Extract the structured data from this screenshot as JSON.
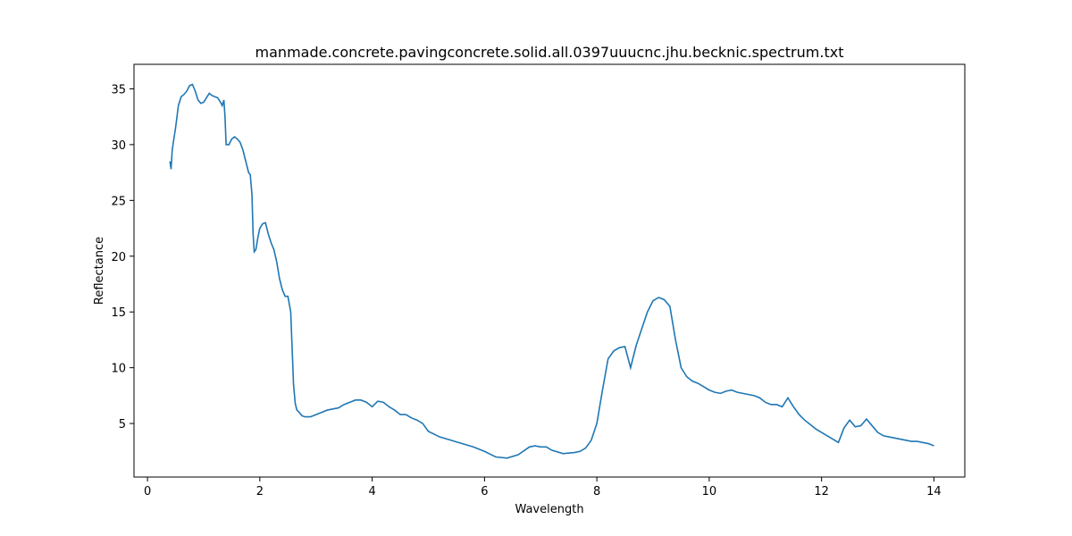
{
  "chart_data": {
    "type": "line",
    "title": "manmade.concrete.pavingconcrete.solid.all.0397uuucnc.jhu.becknic.spectrum.txt",
    "xlabel": "Wavelength",
    "ylabel": "Reflectance",
    "xlim": [
      -0.24,
      14.55
    ],
    "ylim": [
      0.2,
      37.2
    ],
    "xticks": [
      0,
      2,
      4,
      6,
      8,
      10,
      12,
      14
    ],
    "yticks": [
      5,
      10,
      15,
      20,
      25,
      30,
      35
    ],
    "grid": false,
    "line_color": "#1f77b4",
    "series": [
      {
        "x": [
          0.4,
          0.42,
          0.44,
          0.46,
          0.5,
          0.55,
          0.6,
          0.65,
          0.7,
          0.75,
          0.8,
          0.85,
          0.9,
          0.95,
          1.0,
          1.05,
          1.1,
          1.15,
          1.2,
          1.25,
          1.3,
          1.33,
          1.36,
          1.38,
          1.4,
          1.45,
          1.5,
          1.55,
          1.6,
          1.65,
          1.7,
          1.75,
          1.8,
          1.83,
          1.86,
          1.88,
          1.9,
          1.93,
          1.97,
          2.0,
          2.05,
          2.1,
          2.15,
          2.2,
          2.25,
          2.3,
          2.35,
          2.4,
          2.45,
          2.5,
          2.55,
          2.6,
          2.63,
          2.66,
          2.7,
          2.75,
          2.8,
          2.85,
          2.9,
          2.95,
          3.0,
          3.1,
          3.2,
          3.3,
          3.4,
          3.5,
          3.6,
          3.7,
          3.8,
          3.9,
          4.0,
          4.1,
          4.2,
          4.3,
          4.4,
          4.5,
          4.6,
          4.7,
          4.8,
          4.9,
          5.0,
          5.2,
          5.4,
          5.6,
          5.8,
          6.0,
          6.2,
          6.4,
          6.6,
          6.8,
          6.9,
          7.0,
          7.1,
          7.2,
          7.4,
          7.6,
          7.7,
          7.8,
          7.9,
          8.0,
          8.1,
          8.2,
          8.3,
          8.4,
          8.5,
          8.6,
          8.7,
          8.8,
          8.9,
          9.0,
          9.1,
          9.2,
          9.3,
          9.4,
          9.5,
          9.6,
          9.7,
          9.8,
          9.9,
          10.0,
          10.1,
          10.2,
          10.3,
          10.4,
          10.5,
          10.6,
          10.7,
          10.8,
          10.9,
          11.0,
          11.1,
          11.2,
          11.3,
          11.4,
          11.5,
          11.6,
          11.7,
          11.8,
          11.9,
          12.0,
          12.1,
          12.2,
          12.3,
          12.4,
          12.5,
          12.6,
          12.7,
          12.8,
          12.9,
          13.0,
          13.1,
          13.2,
          13.3,
          13.4,
          13.5,
          13.6,
          13.7,
          13.8,
          13.9,
          14.0
        ],
        "y": [
          28.5,
          27.8,
          29.5,
          30.2,
          31.5,
          33.5,
          34.3,
          34.5,
          34.8,
          35.3,
          35.4,
          34.8,
          34.0,
          33.7,
          33.8,
          34.2,
          34.6,
          34.4,
          34.3,
          34.2,
          33.8,
          33.5,
          34.0,
          32.5,
          30.0,
          30.0,
          30.5,
          30.7,
          30.5,
          30.2,
          29.5,
          28.5,
          27.5,
          27.3,
          25.5,
          22.0,
          20.4,
          20.6,
          21.8,
          22.5,
          22.9,
          23.0,
          22.0,
          21.2,
          20.6,
          19.5,
          18.0,
          17.0,
          16.4,
          16.4,
          15.0,
          8.5,
          6.8,
          6.2,
          6.0,
          5.7,
          5.6,
          5.6,
          5.6,
          5.7,
          5.8,
          6.0,
          6.2,
          6.3,
          6.4,
          6.7,
          6.9,
          7.1,
          7.1,
          6.9,
          6.5,
          7.0,
          6.9,
          6.5,
          6.2,
          5.8,
          5.8,
          5.5,
          5.3,
          5.0,
          4.3,
          3.8,
          3.5,
          3.2,
          2.9,
          2.5,
          2.0,
          1.9,
          2.2,
          2.9,
          3.0,
          2.9,
          2.9,
          2.6,
          2.3,
          2.4,
          2.5,
          2.8,
          3.5,
          5.0,
          8.0,
          10.8,
          11.5,
          11.8,
          11.9,
          10.0,
          12.0,
          13.5,
          15.0,
          16.0,
          16.3,
          16.1,
          15.5,
          12.5,
          10.0,
          9.2,
          8.8,
          8.6,
          8.3,
          8.0,
          7.8,
          7.7,
          7.9,
          8.0,
          7.8,
          7.7,
          7.6,
          7.5,
          7.3,
          6.9,
          6.7,
          6.7,
          6.5,
          7.3,
          6.5,
          5.8,
          5.3,
          4.9,
          4.5,
          4.2,
          3.9,
          3.6,
          3.3,
          4.6,
          5.3,
          4.7,
          4.8,
          5.4,
          4.8,
          4.2,
          3.9,
          3.8,
          3.7,
          3.6,
          3.5,
          3.4,
          3.4,
          3.3,
          3.2,
          3.0
        ]
      }
    ]
  }
}
